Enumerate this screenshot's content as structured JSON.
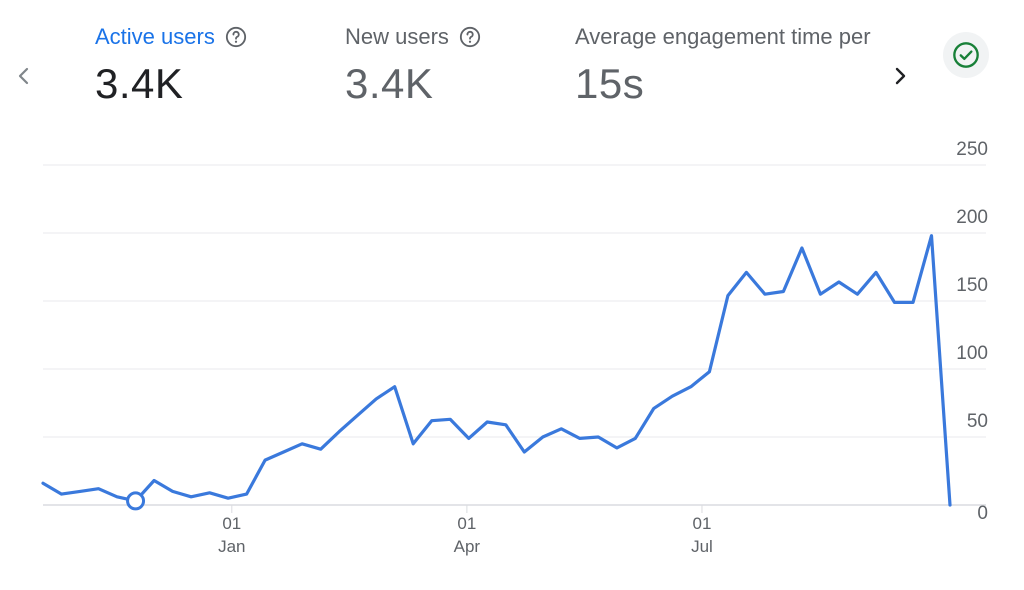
{
  "metrics": [
    {
      "label": "Active users",
      "value": "3.4K"
    },
    {
      "label": "New users",
      "value": "3.4K"
    },
    {
      "label": "Average engagement time per active user",
      "value": "15s"
    }
  ],
  "icons": {
    "prev": "chevron-left-icon",
    "next": "chevron-right-icon",
    "help": "help-circle-icon",
    "status": "check-circle-icon"
  },
  "colors": {
    "accent": "#1a73e8",
    "line": "#3a79dc",
    "status_check": "#188038"
  },
  "chart_data": {
    "type": "line",
    "title": "Active users",
    "x_axis": {
      "ticks": [
        {
          "day": "01",
          "month": "Jan",
          "index": 10.2
        },
        {
          "day": "01",
          "month": "Apr",
          "index": 22.9
        },
        {
          "day": "01",
          "month": "Jul",
          "index": 35.6
        }
      ]
    },
    "y_axis": {
      "ticks": [
        0,
        50,
        100,
        150,
        200,
        250
      ],
      "ylim": [
        0,
        250
      ],
      "position": "right"
    },
    "series": [
      {
        "name": "Active users",
        "values": [
          16,
          8,
          10,
          12,
          6,
          3,
          18,
          10,
          6,
          9,
          5,
          8,
          33,
          39,
          45,
          41,
          54,
          66,
          78,
          87,
          45,
          62,
          63,
          49,
          61,
          59,
          39,
          50,
          56,
          49,
          50,
          42,
          49,
          71,
          80,
          87,
          98,
          154,
          171,
          155,
          157,
          189,
          155,
          164,
          155,
          171,
          149,
          149,
          198,
          0
        ],
        "highlight_index": 5
      }
    ],
    "xlim": [
      0,
      49
    ],
    "grid": true,
    "legend": "none"
  }
}
